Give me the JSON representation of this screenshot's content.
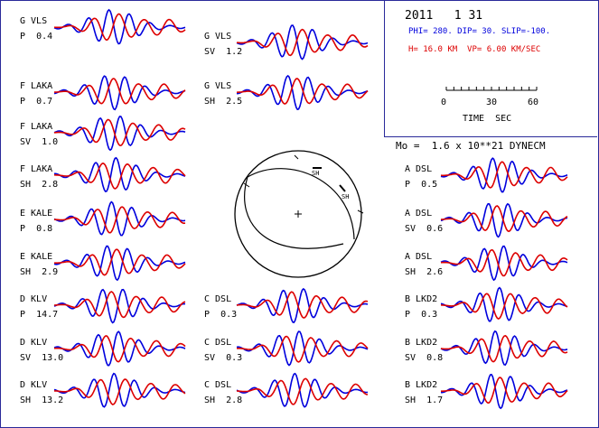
{
  "header": {
    "date": "2011   1 31",
    "mechanism": "PHI= 280. DIP= 30. SLIP=-100.",
    "depth_velocity": "H= 16.0 KM  VP= 6.00 KM/SEC",
    "scale_ticks": [
      "0",
      "30",
      "60"
    ],
    "scale_label": "TIME  SEC",
    "moment": "Mo =  1.6 x 10**21 DYNECM"
  },
  "colors": {
    "observed": "#0000dd",
    "synthetic": "#dd0000",
    "frame": "#2a2a9a"
  },
  "beachball": {
    "station_labels": [
      "SH",
      "SH"
    ],
    "nodal_plane_strike_deg": 280,
    "nodal_plane_dip_deg": 30
  },
  "stations": [
    {
      "station": "G VLS",
      "phase": "P",
      "value": "0.4",
      "col": 0,
      "row": 0
    },
    {
      "station": "F LAKA",
      "phase": "P",
      "value": "0.7",
      "col": 0,
      "row": 1
    },
    {
      "station": "F LAKA",
      "phase": "SV",
      "value": "1.0",
      "col": 0,
      "row": 2
    },
    {
      "station": "F LAKA",
      "phase": "SH",
      "value": "2.8",
      "col": 0,
      "row": 3
    },
    {
      "station": "E KALE",
      "phase": "P",
      "value": "0.8",
      "col": 0,
      "row": 4
    },
    {
      "station": "E KALE",
      "phase": "SH",
      "value": "2.9",
      "col": 0,
      "row": 5
    },
    {
      "station": "D KLV",
      "phase": "P",
      "value": "14.7",
      "col": 0,
      "row": 6
    },
    {
      "station": "D KLV",
      "phase": "SV",
      "value": "13.0",
      "col": 0,
      "row": 7
    },
    {
      "station": "D KLV",
      "phase": "SH",
      "value": "13.2",
      "col": 0,
      "row": 8
    },
    {
      "station": "G VLS",
      "phase": "SV",
      "value": "1.2",
      "col": 1,
      "row": 0
    },
    {
      "station": "G VLS",
      "phase": "SH",
      "value": "2.5",
      "col": 1,
      "row": 1
    },
    {
      "station": "C DSL",
      "phase": "P",
      "value": "0.3",
      "col": 1,
      "row": 6
    },
    {
      "station": "C DSL",
      "phase": "SV",
      "value": "0.3",
      "col": 1,
      "row": 7
    },
    {
      "station": "C DSL",
      "phase": "SH",
      "value": "2.8",
      "col": 1,
      "row": 8
    },
    {
      "station": "A DSL",
      "phase": "P",
      "value": "0.5",
      "col": 2,
      "row": 3
    },
    {
      "station": "A DSL",
      "phase": "SV",
      "value": "0.6",
      "col": 2,
      "row": 4
    },
    {
      "station": "A DSL",
      "phase": "SH",
      "value": "2.6",
      "col": 2,
      "row": 5
    },
    {
      "station": "B LKD2",
      "phase": "P",
      "value": "0.3",
      "col": 2,
      "row": 6
    },
    {
      "station": "B LKD2",
      "phase": "SV",
      "value": "0.8",
      "col": 2,
      "row": 7
    },
    {
      "station": "B LKD2",
      "phase": "SH",
      "value": "1.7",
      "col": 2,
      "row": 8
    }
  ]
}
